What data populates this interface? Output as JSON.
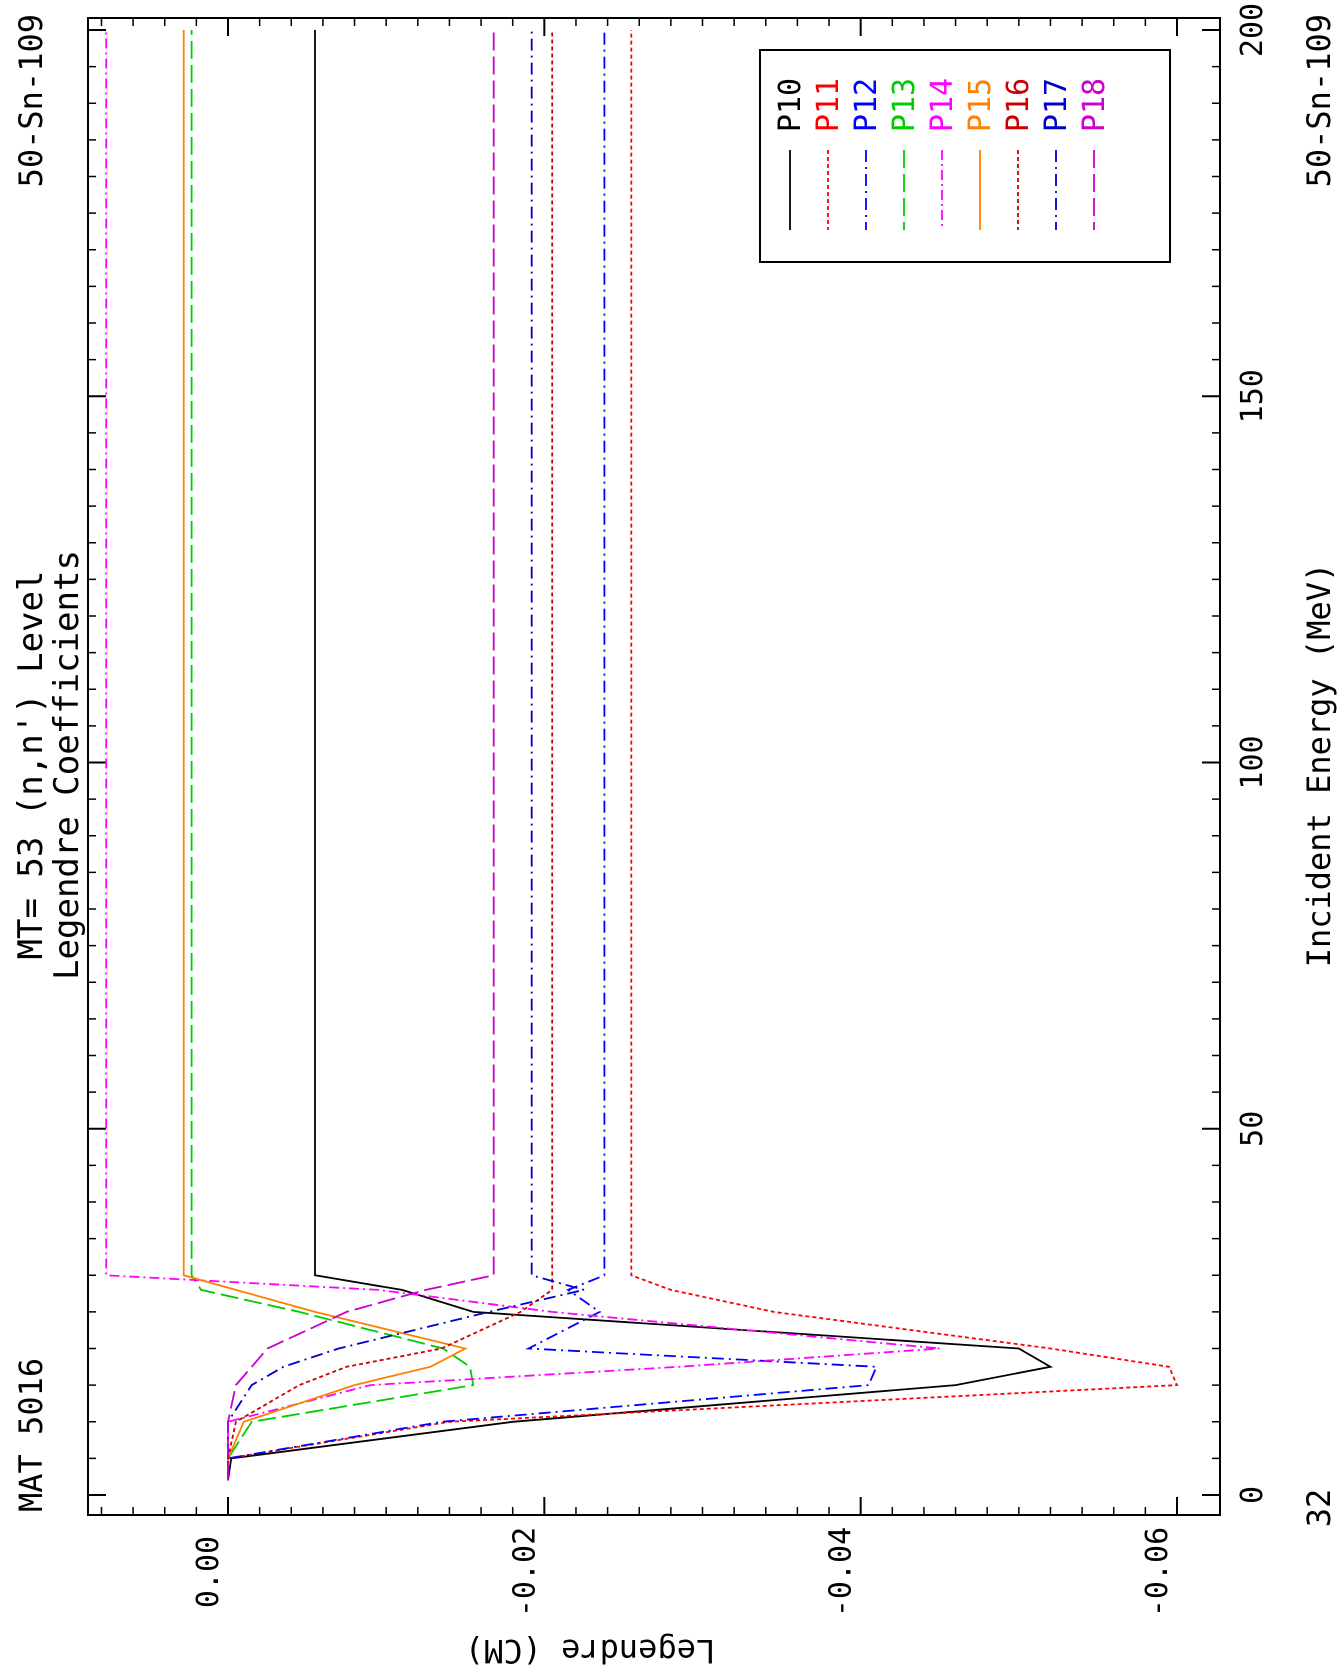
{
  "page": {
    "header_left": "MAT 5016",
    "header_right": "50-Sn-109",
    "footer_left": "32",
    "footer_right": "50-Sn-109"
  },
  "chart_data": {
    "type": "line",
    "orientation": "rotated-90-clockwise",
    "title": [
      "MT= 53 (n,n') Level",
      "Legendre Coefficients"
    ],
    "xlabel": "Incident Energy (MeV)",
    "ylabel": "Legendre (CM)",
    "xlim": [
      0,
      200
    ],
    "ylim": [
      -0.062,
      0.009
    ],
    "x_ticks": [
      0,
      50,
      100,
      150,
      200
    ],
    "y_ticks": [
      0.0,
      -0.02,
      -0.04,
      -0.06
    ],
    "y_tick_labels": [
      "0.00",
      "-0.02",
      "-0.04",
      "-0.06"
    ],
    "legend_position": "top-right",
    "series": [
      {
        "name": "P10",
        "color": "#000000",
        "dash": "solid",
        "x": [
          2.0,
          5.0,
          10.0,
          15.0,
          17.5,
          20.0,
          25.0,
          28.0,
          30.0,
          200.0
        ],
        "y": [
          0.0,
          -0.0002,
          -0.018,
          -0.046,
          -0.052,
          -0.05,
          -0.0155,
          -0.011,
          -0.0055,
          -0.0055
        ]
      },
      {
        "name": "P11",
        "color": "#ff0000",
        "dash": "4 3",
        "x": [
          2.0,
          5.0,
          10.0,
          15.0,
          17.5,
          20.0,
          25.0,
          28.0,
          30.0,
          200.0
        ],
        "y": [
          0.0,
          0.0,
          -0.014,
          -0.06,
          -0.0595,
          -0.052,
          -0.0345,
          -0.028,
          -0.0255,
          -0.0255
        ]
      },
      {
        "name": "P12",
        "color": "#0000ff",
        "dash": "12 5 2 5",
        "x": [
          2.0,
          5.0,
          10.0,
          15.0,
          17.5,
          20.0,
          25.0,
          28.0,
          30.0,
          200.0
        ],
        "y": [
          0.0,
          0.0,
          -0.0135,
          -0.0405,
          -0.041,
          -0.019,
          -0.0235,
          -0.0215,
          -0.0238,
          -0.0238
        ]
      },
      {
        "name": "P13",
        "color": "#00cc00",
        "dash": "18 6",
        "x": [
          2.0,
          5.0,
          10.0,
          15.0,
          17.5,
          20.0,
          25.0,
          28.0,
          30.0,
          200.0
        ],
        "y": [
          0.0,
          0.0,
          -0.0015,
          -0.0155,
          -0.0153,
          -0.0136,
          -0.0045,
          0.0017,
          0.0023,
          0.0023
        ]
      },
      {
        "name": "P14",
        "color": "#ff00ff",
        "dash": "10 4 2 4",
        "x": [
          2.0,
          5.0,
          10.0,
          15.0,
          17.5,
          20.0,
          25.0,
          28.0,
          30.0,
          200.0
        ],
        "y": [
          0.0,
          0.0,
          0.0,
          -0.009,
          -0.0285,
          -0.045,
          -0.0205,
          -0.0095,
          0.0077,
          0.0077
        ]
      },
      {
        "name": "P15",
        "color": "#ff8000",
        "dash": "solid",
        "x": [
          2.0,
          5.0,
          10.0,
          15.0,
          17.5,
          20.0,
          25.0,
          28.0,
          30.0,
          200.0
        ],
        "y": [
          0.0,
          0.0,
          -0.001,
          -0.008,
          -0.0128,
          -0.015,
          -0.0055,
          -0.0005,
          0.0028,
          0.0028
        ]
      },
      {
        "name": "P16",
        "color": "#cc0000",
        "dash": "4 3",
        "x": [
          2.0,
          5.0,
          10.0,
          15.0,
          17.5,
          20.0,
          25.0,
          28.0,
          30.0,
          200.0
        ],
        "y": [
          0.0,
          0.0,
          -0.0005,
          -0.0045,
          -0.0075,
          -0.0135,
          -0.0185,
          -0.0205,
          -0.0205,
          -0.0205
        ]
      },
      {
        "name": "P17",
        "color": "#0000cc",
        "dash": "12 5 2 5",
        "x": [
          2.0,
          5.0,
          10.0,
          15.0,
          17.5,
          20.0,
          25.0,
          28.0,
          30.0,
          200.0
        ],
        "y": [
          0.0,
          0.0,
          0.0,
          -0.0015,
          -0.0035,
          -0.007,
          -0.0165,
          -0.0225,
          -0.0192,
          -0.0192
        ]
      },
      {
        "name": "P18",
        "color": "#cc00cc",
        "dash": "18 6",
        "x": [
          2.0,
          5.0,
          10.0,
          15.0,
          17.5,
          20.0,
          25.0,
          28.0,
          30.0,
          200.0
        ],
        "y": [
          0.0,
          0.0,
          0.0,
          -0.0005,
          -0.0015,
          -0.0025,
          -0.0075,
          -0.0125,
          -0.0168,
          -0.0168
        ]
      }
    ]
  }
}
